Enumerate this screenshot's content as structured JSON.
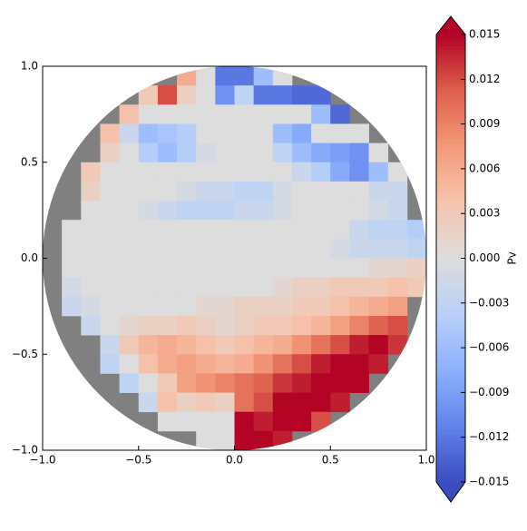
{
  "chart_data": {
    "type": "heatmap",
    "colorbar_label": "Pv",
    "colormap": "coolwarm",
    "xlim": [
      -1.0,
      1.0
    ],
    "ylim": [
      -1.0,
      1.0
    ],
    "xticks": [
      {
        "value": -1.0,
        "label": "−1.0"
      },
      {
        "value": -0.5,
        "label": "−0.5"
      },
      {
        "value": 0,
        "label": "0.0"
      },
      {
        "value": 0.5,
        "label": "0.5"
      },
      {
        "value": 1.0,
        "label": "1.0"
      }
    ],
    "yticks": [
      {
        "value": -1.0,
        "label": "−1.0"
      },
      {
        "value": -0.5,
        "label": "−0.5"
      },
      {
        "value": 0,
        "label": "0.0"
      },
      {
        "value": 0.5,
        "label": "0.5"
      },
      {
        "value": 1.0,
        "label": "1.0"
      }
    ],
    "zlim": [
      -0.015,
      0.015
    ],
    "zticks": [
      {
        "value": -0.015,
        "label": "−0.015"
      },
      {
        "value": -0.012,
        "label": "−0.012"
      },
      {
        "value": -0.009,
        "label": "−0.009"
      },
      {
        "value": -0.006,
        "label": "−0.006"
      },
      {
        "value": -0.003,
        "label": "−0.003"
      },
      {
        "value": 0,
        "label": "0.000"
      },
      0.003,
      0.006,
      0.009,
      0.012,
      0.015
    ],
    "z": [
      [
        null,
        null,
        null,
        null,
        null,
        null,
        null,
        0.006,
        0,
        -0.012,
        -0.012,
        -0.006,
        0,
        null,
        null,
        null,
        null,
        null,
        null,
        null
      ],
      [
        null,
        null,
        null,
        null,
        null,
        0.003,
        0.012,
        0.002,
        0,
        -0.01,
        -0.003,
        -0.012,
        -0.012,
        -0.013,
        -0.013,
        null,
        null,
        null,
        null,
        null
      ],
      [
        null,
        null,
        null,
        null,
        0.004,
        0,
        0,
        0,
        0,
        0,
        0,
        0,
        0,
        0,
        -0.006,
        -0.013,
        null,
        null,
        null,
        null
      ],
      [
        null,
        null,
        null,
        0.004,
        -0.002,
        -0.006,
        -0.005,
        -0.004,
        0,
        0,
        0,
        0,
        -0.006,
        -0.008,
        0,
        0,
        0,
        null,
        null,
        null
      ],
      [
        null,
        null,
        null,
        0.002,
        0,
        -0.004,
        -0.006,
        -0.004,
        -0.001,
        0,
        0,
        0,
        -0.003,
        -0.006,
        -0.008,
        -0.009,
        -0.01,
        0,
        null,
        null
      ],
      [
        null,
        null,
        0.003,
        0,
        0,
        0,
        0,
        0,
        0,
        0,
        0,
        0,
        0,
        -0.002,
        -0.004,
        -0.008,
        -0.01,
        -0.006,
        0,
        null
      ],
      [
        null,
        null,
        0.002,
        0,
        0,
        0,
        0,
        -0.001,
        -0.002,
        -0.002,
        -0.003,
        -0.003,
        -0.001,
        0,
        0,
        0,
        0,
        -0.002,
        -0.002,
        null
      ],
      [
        null,
        null,
        0,
        0,
        0,
        -0.001,
        -0.002,
        -0.003,
        -0.003,
        -0.003,
        -0.002,
        -0.002,
        -0.001,
        0,
        0,
        0,
        0,
        -0.001,
        -0.002,
        null
      ],
      [
        null,
        0,
        0,
        0,
        0,
        0,
        0,
        0,
        0,
        0,
        0,
        0,
        0,
        0,
        0,
        0,
        -0.002,
        -0.003,
        -0.003,
        -0.004
      ],
      [
        null,
        0,
        0,
        0,
        0,
        0,
        0,
        0,
        0,
        0,
        0,
        0,
        0,
        0,
        0,
        -0.001,
        -0.002,
        -0.002,
        -0.002,
        -0.003
      ],
      [
        null,
        0,
        0,
        0,
        0,
        0,
        0,
        0,
        0,
        0,
        0,
        0,
        0,
        0,
        0,
        0,
        0,
        0.001,
        0.001,
        0.002
      ],
      [
        null,
        -0.001,
        0,
        0,
        0,
        0,
        0,
        0,
        0,
        0,
        0,
        0,
        0.001,
        0.002,
        0.002,
        0.003,
        0.003,
        0.003,
        0.004,
        0.003
      ],
      [
        null,
        -0.002,
        -0.001,
        0,
        0,
        0,
        0,
        0,
        0.001,
        0.001,
        0.002,
        0.002,
        0.002,
        0.003,
        0.003,
        0.004,
        0.005,
        0.006,
        0.007,
        null
      ],
      [
        null,
        null,
        -0.002,
        0,
        0.001,
        0.002,
        0.002,
        0.003,
        0.002,
        0.001,
        0.002,
        0.003,
        0.003,
        0.004,
        0.005,
        0.007,
        0.009,
        0.011,
        0.012,
        null
      ],
      [
        null,
        null,
        null,
        -0.002,
        0.003,
        0.005,
        0.006,
        0.005,
        0.004,
        0.003,
        0.004,
        0.005,
        0.006,
        0.008,
        0.01,
        0.012,
        0.014,
        0.015,
        0.013,
        null
      ],
      [
        null,
        null,
        null,
        -0.003,
        0,
        0.004,
        0.006,
        0.007,
        0.006,
        0.005,
        0.006,
        0.008,
        0.01,
        0.012,
        0.014,
        0.015,
        0.015,
        0.014,
        null,
        null
      ],
      [
        null,
        null,
        null,
        null,
        -0.003,
        0,
        0.003,
        0.007,
        0.008,
        0.009,
        0.01,
        0.011,
        0.013,
        0.014,
        0.015,
        0.015,
        0.015,
        null,
        null,
        null
      ],
      [
        null,
        null,
        null,
        null,
        null,
        -0.002,
        0.004,
        0.002,
        0.003,
        0.002,
        0.01,
        0.012,
        0.015,
        0.015,
        0.015,
        0.014,
        null,
        null,
        null,
        null
      ],
      [
        null,
        null,
        null,
        null,
        null,
        null,
        0,
        0,
        0,
        0,
        0.015,
        0.014,
        0.015,
        0.015,
        0.012,
        null,
        null,
        null,
        null,
        null
      ],
      [
        null,
        null,
        null,
        null,
        null,
        null,
        null,
        null,
        0,
        0,
        0.015,
        0.015,
        0.014,
        null,
        null,
        null,
        null,
        null,
        null,
        null
      ]
    ]
  }
}
